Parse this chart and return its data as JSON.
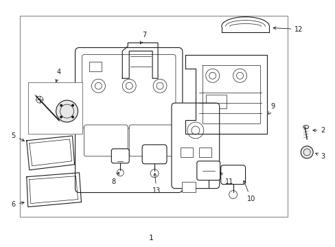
{
  "bg_color": "#ffffff",
  "line_color": "#1a1a1a",
  "border_color": "#888888",
  "label_color": "#000000",
  "fig_width": 4.89,
  "fig_height": 3.6,
  "dpi": 100
}
